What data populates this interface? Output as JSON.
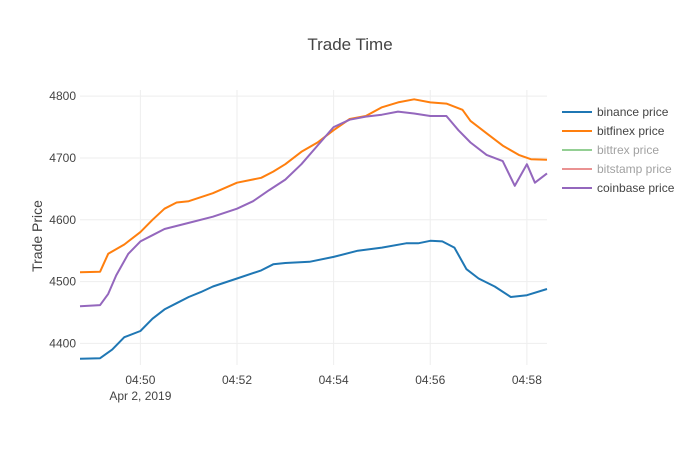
{
  "chart_data": {
    "type": "line",
    "title": "Trade Time",
    "xlabel": "",
    "ylabel": "Trade Price",
    "x_unit": "minutes (HH:MM, Apr 2, 2019)",
    "xlim": [
      "04:48:45",
      "04:58:25"
    ],
    "ylim": [
      4365,
      4810
    ],
    "grid": true,
    "legend_position": "right",
    "x_ticks": [
      {
        "value": "04:50",
        "label": "04:50",
        "sublabel": "Apr 2, 2019"
      },
      {
        "value": "04:52",
        "label": "04:52",
        "sublabel": ""
      },
      {
        "value": "04:54",
        "label": "04:54",
        "sublabel": ""
      },
      {
        "value": "04:56",
        "label": "04:56",
        "sublabel": ""
      },
      {
        "value": "04:58",
        "label": "04:58",
        "sublabel": ""
      }
    ],
    "y_ticks": [
      4400,
      4500,
      4600,
      4700,
      4800
    ],
    "series": [
      {
        "name": "binance price",
        "color": "#1f77b4",
        "visible": true,
        "x": [
          "04:48:45",
          "04:49:10",
          "04:49:25",
          "04:49:40",
          "04:50:00",
          "04:50:15",
          "04:50:30",
          "04:50:45",
          "04:51:00",
          "04:51:15",
          "04:51:30",
          "04:52:00",
          "04:52:30",
          "04:52:45",
          "04:53:00",
          "04:53:30",
          "04:54:00",
          "04:54:30",
          "04:55:00",
          "04:55:30",
          "04:55:45",
          "04:56:00",
          "04:56:15",
          "04:56:30",
          "04:56:45",
          "04:57:00",
          "04:57:20",
          "04:57:40",
          "04:58:00",
          "04:58:25"
        ],
        "y": [
          4375,
          4376,
          4390,
          4410,
          4420,
          4440,
          4455,
          4465,
          4475,
          4483,
          4492,
          4505,
          4518,
          4528,
          4530,
          4532,
          4540,
          4550,
          4555,
          4562,
          4562,
          4566,
          4565,
          4555,
          4520,
          4505,
          4492,
          4475,
          4478,
          4488
        ]
      },
      {
        "name": "bitfinex price",
        "color": "#ff7f0e",
        "visible": true,
        "x": [
          "04:48:45",
          "04:49:10",
          "04:49:20",
          "04:49:40",
          "04:50:00",
          "04:50:15",
          "04:50:30",
          "04:50:45",
          "04:51:00",
          "04:51:30",
          "04:52:00",
          "04:52:30",
          "04:52:45",
          "04:53:00",
          "04:53:20",
          "04:53:40",
          "04:54:00",
          "04:54:20",
          "04:54:40",
          "04:55:00",
          "04:55:20",
          "04:55:40",
          "04:56:00",
          "04:56:20",
          "04:56:40",
          "04:56:50",
          "04:57:10",
          "04:57:30",
          "04:57:50",
          "04:58:05",
          "04:58:25"
        ],
        "y": [
          4515,
          4516,
          4545,
          4560,
          4580,
          4600,
          4618,
          4628,
          4630,
          4643,
          4660,
          4668,
          4678,
          4690,
          4710,
          4725,
          4745,
          4763,
          4768,
          4782,
          4790,
          4795,
          4790,
          4788,
          4778,
          4760,
          4740,
          4720,
          4705,
          4698,
          4697
        ]
      },
      {
        "name": "bittrex price",
        "color": "#2ca02c",
        "visible": false,
        "x": [],
        "y": []
      },
      {
        "name": "bitstamp price",
        "color": "#d62728",
        "visible": false,
        "x": [],
        "y": []
      },
      {
        "name": "coinbase price",
        "color": "#9467bd",
        "visible": true,
        "x": [
          "04:48:45",
          "04:49:10",
          "04:49:20",
          "04:49:30",
          "04:49:45",
          "04:50:00",
          "04:50:15",
          "04:50:30",
          "04:51:00",
          "04:51:30",
          "04:52:00",
          "04:52:20",
          "04:52:40",
          "04:53:00",
          "04:53:20",
          "04:53:40",
          "04:54:00",
          "04:54:20",
          "04:54:40",
          "04:55:00",
          "04:55:20",
          "04:55:40",
          "04:56:00",
          "04:56:20",
          "04:56:35",
          "04:56:50",
          "04:57:10",
          "04:57:30",
          "04:57:45",
          "04:58:00",
          "04:58:10",
          "04:58:25"
        ],
        "y": [
          4460,
          4462,
          4480,
          4510,
          4545,
          4565,
          4575,
          4585,
          4595,
          4605,
          4618,
          4630,
          4648,
          4665,
          4690,
          4720,
          4750,
          4762,
          4767,
          4770,
          4775,
          4772,
          4768,
          4768,
          4745,
          4725,
          4705,
          4695,
          4655,
          4690,
          4660,
          4675
        ]
      }
    ]
  }
}
